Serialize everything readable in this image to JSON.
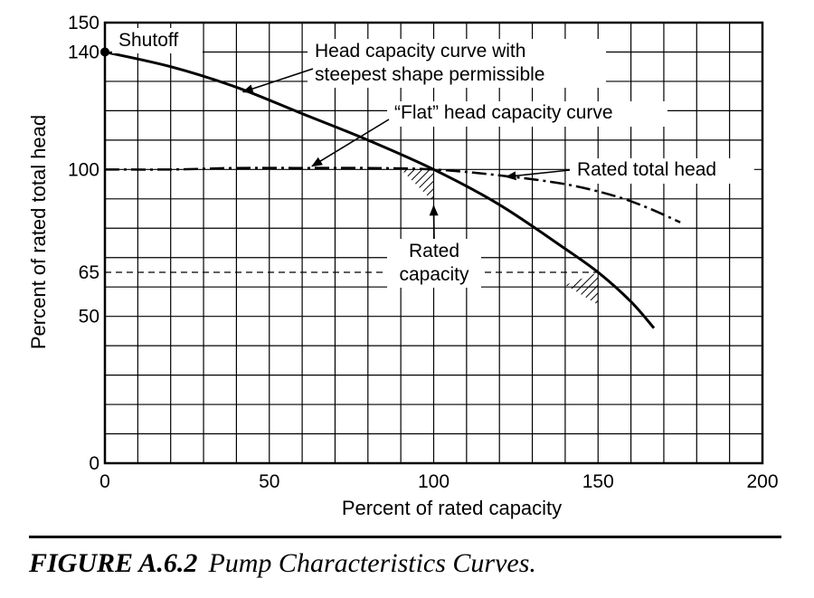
{
  "chart_data": {
    "type": "line",
    "title": "",
    "xlabel": "Percent of rated capacity",
    "ylabel": "Percent of rated total head",
    "xlim": [
      0,
      200
    ],
    "ylim": [
      0,
      150
    ],
    "xticks": [
      0,
      50,
      100,
      150,
      200
    ],
    "yticks": [
      0,
      50,
      65,
      100,
      140,
      150
    ],
    "x_tick_labels": [
      "0",
      "50",
      "100",
      "150",
      "200"
    ],
    "y_tick_labels": [
      "0",
      "50",
      "65",
      "100",
      "140",
      "150"
    ],
    "grid": true,
    "series": [
      {
        "name": "Head capacity curve with steepest shape permissible",
        "style": "solid",
        "x": [
          0,
          20,
          40,
          60,
          80,
          100,
          120,
          140,
          150,
          160,
          167
        ],
        "y": [
          140,
          135,
          128,
          119,
          110,
          100,
          88,
          73,
          65,
          55,
          46
        ]
      },
      {
        "name": "“Flat” head capacity curve",
        "style": "dash-dot",
        "x": [
          0,
          20,
          40,
          60,
          80,
          100,
          120,
          140,
          155,
          165,
          175
        ],
        "y": [
          100,
          100,
          100.5,
          100.5,
          100.5,
          100,
          98,
          95,
          91,
          87,
          82
        ]
      }
    ],
    "reference_lines": {
      "rated_head": 100,
      "rated_capacity": 100,
      "head_65": 65,
      "capacity_150": 150
    },
    "shutoff_point": {
      "x": 0,
      "y": 140
    },
    "annotations": [
      {
        "id": "shutoff",
        "text": "Shutoff"
      },
      {
        "id": "steep_curve",
        "lines": [
          "Head capacity curve with",
          "steepest shape permissible"
        ]
      },
      {
        "id": "flat_curve",
        "text": "“Flat” head capacity curve"
      },
      {
        "id": "rated_total_head",
        "text": "Rated total head"
      },
      {
        "id": "rated_capacity",
        "lines": [
          "Rated",
          "capacity"
        ]
      }
    ]
  },
  "caption": {
    "figure_number": "FIGURE A.6.2",
    "text": "Pump Characteristics Curves."
  }
}
